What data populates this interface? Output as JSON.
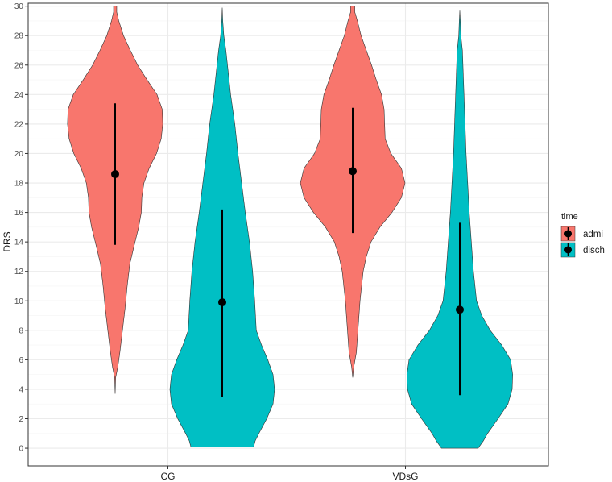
{
  "chart_data": {
    "type": "violin",
    "ylabel": "DRS",
    "xlabel": "",
    "ylim": [
      -1.2,
      30.2
    ],
    "yticks": [
      0,
      2,
      4,
      6,
      8,
      10,
      12,
      14,
      16,
      18,
      20,
      22,
      24,
      26,
      28,
      30
    ],
    "categories": [
      "CG",
      "VDsG"
    ],
    "legend": {
      "title": "time",
      "position": "right",
      "entries": [
        {
          "label": "admi",
          "color": "#F8766D"
        },
        {
          "label": "disch",
          "color": "#00BFC4"
        }
      ]
    },
    "groups": [
      {
        "category": "CG",
        "time": "admi",
        "color": "#F8766D",
        "min": 3.7,
        "max": 30,
        "mean": 18.6,
        "lower": 13.8,
        "upper": 23.4,
        "density": [
          [
            3.7,
            0.0
          ],
          [
            4.8,
            0.01
          ],
          [
            5.5,
            0.05
          ],
          [
            6.5,
            0.09
          ],
          [
            8.0,
            0.14
          ],
          [
            9.5,
            0.19
          ],
          [
            11.0,
            0.23
          ],
          [
            12.5,
            0.28
          ],
          [
            14.0,
            0.38
          ],
          [
            15.0,
            0.45
          ],
          [
            16.0,
            0.5
          ],
          [
            17.0,
            0.51
          ],
          [
            18.0,
            0.55
          ],
          [
            19.0,
            0.65
          ],
          [
            20.0,
            0.79
          ],
          [
            21.0,
            0.88
          ],
          [
            22.0,
            0.91
          ],
          [
            23.0,
            0.9
          ],
          [
            24.0,
            0.8
          ],
          [
            25.0,
            0.61
          ],
          [
            26.0,
            0.43
          ],
          [
            27.0,
            0.29
          ],
          [
            28.0,
            0.16
          ],
          [
            29.0,
            0.07
          ],
          [
            29.6,
            0.03
          ],
          [
            30.0,
            0.03
          ]
        ]
      },
      {
        "category": "CG",
        "time": "disch",
        "color": "#00BFC4",
        "min": 0.1,
        "max": 29.9,
        "mean": 9.9,
        "lower": 3.5,
        "upper": 16.2,
        "density": [
          [
            0.1,
            0.6
          ],
          [
            0.5,
            0.63
          ],
          [
            1.0,
            0.7
          ],
          [
            2.0,
            0.85
          ],
          [
            3.0,
            0.97
          ],
          [
            4.0,
            1.0
          ],
          [
            5.0,
            0.97
          ],
          [
            6.0,
            0.87
          ],
          [
            7.0,
            0.75
          ],
          [
            8.0,
            0.65
          ],
          [
            10.0,
            0.62
          ],
          [
            12.0,
            0.58
          ],
          [
            14.0,
            0.52
          ],
          [
            16.0,
            0.44
          ],
          [
            18.0,
            0.37
          ],
          [
            20.0,
            0.3
          ],
          [
            22.0,
            0.24
          ],
          [
            24.0,
            0.16
          ],
          [
            26.0,
            0.1
          ],
          [
            27.0,
            0.07
          ],
          [
            28.0,
            0.03
          ],
          [
            29.0,
            0.01
          ],
          [
            29.9,
            0.0
          ]
        ]
      },
      {
        "category": "VDsG",
        "time": "admi",
        "color": "#F8766D",
        "min": 4.8,
        "max": 30,
        "mean": 18.8,
        "lower": 14.6,
        "upper": 23.1,
        "density": [
          [
            4.8,
            0.0
          ],
          [
            5.5,
            0.02
          ],
          [
            6.5,
            0.07
          ],
          [
            8.0,
            0.1
          ],
          [
            10.0,
            0.14
          ],
          [
            12.0,
            0.2
          ],
          [
            13.0,
            0.26
          ],
          [
            14.0,
            0.35
          ],
          [
            15.0,
            0.52
          ],
          [
            16.0,
            0.75
          ],
          [
            17.0,
            0.93
          ],
          [
            18.0,
            1.0
          ],
          [
            19.0,
            0.93
          ],
          [
            20.0,
            0.73
          ],
          [
            21.0,
            0.62
          ],
          [
            22.0,
            0.61
          ],
          [
            23.0,
            0.6
          ],
          [
            24.0,
            0.55
          ],
          [
            25.0,
            0.45
          ],
          [
            26.0,
            0.36
          ],
          [
            27.0,
            0.26
          ],
          [
            28.0,
            0.16
          ],
          [
            29.0,
            0.09
          ],
          [
            29.6,
            0.04
          ],
          [
            30.0,
            0.04
          ]
        ]
      },
      {
        "category": "VDsG",
        "time": "disch",
        "color": "#00BFC4",
        "min": 0.0,
        "max": 29.7,
        "mean": 9.4,
        "lower": 3.6,
        "upper": 15.3,
        "density": [
          [
            0.0,
            0.35
          ],
          [
            0.5,
            0.45
          ],
          [
            1.0,
            0.53
          ],
          [
            2.0,
            0.73
          ],
          [
            3.0,
            0.92
          ],
          [
            4.0,
            1.0
          ],
          [
            5.0,
            1.01
          ],
          [
            6.0,
            0.97
          ],
          [
            7.0,
            0.8
          ],
          [
            8.0,
            0.58
          ],
          [
            9.0,
            0.42
          ],
          [
            10.0,
            0.32
          ],
          [
            12.0,
            0.26
          ],
          [
            14.0,
            0.22
          ],
          [
            16.0,
            0.18
          ],
          [
            18.0,
            0.15
          ],
          [
            20.0,
            0.12
          ],
          [
            22.0,
            0.1
          ],
          [
            24.0,
            0.08
          ],
          [
            26.0,
            0.06
          ],
          [
            27.0,
            0.05
          ],
          [
            28.0,
            0.02
          ],
          [
            29.0,
            0.01
          ],
          [
            29.7,
            0.0
          ]
        ]
      }
    ]
  }
}
